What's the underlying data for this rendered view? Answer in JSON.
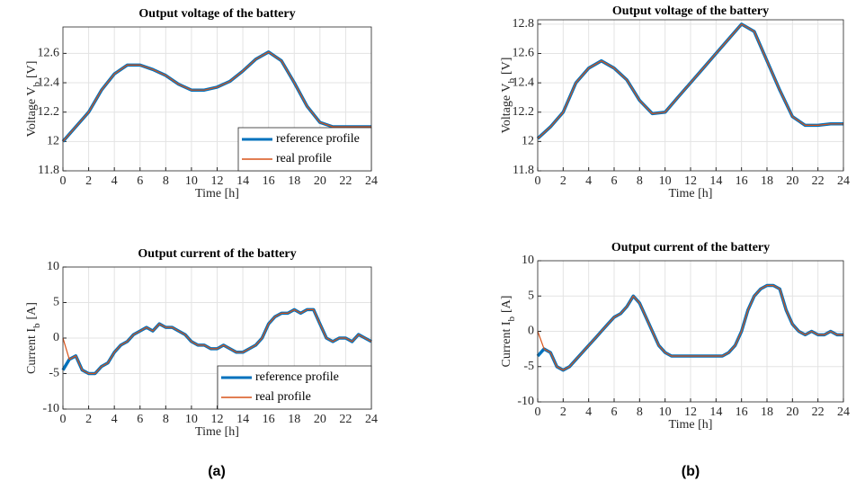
{
  "chart_data": [
    {
      "type": "line",
      "title": "Output voltage of the battery",
      "xlabel": "Time [h]",
      "ylabel": [
        "Voltage V",
        "b",
        "[V]"
      ],
      "x": [
        0,
        1,
        2,
        3,
        4,
        5,
        6,
        7,
        8,
        9,
        10,
        11,
        12,
        13,
        14,
        15,
        16,
        17,
        18,
        19,
        20,
        21,
        22,
        23,
        24
      ],
      "series": [
        {
          "name": "reference profile",
          "color": "#0072bd",
          "values": [
            12.0,
            12.1,
            12.2,
            12.35,
            12.46,
            12.52,
            12.52,
            12.49,
            12.45,
            12.39,
            12.35,
            12.35,
            12.37,
            12.41,
            12.48,
            12.56,
            12.61,
            12.55,
            12.4,
            12.24,
            12.13,
            12.1,
            12.1,
            12.1,
            12.1
          ]
        },
        {
          "name": "real profile",
          "color": "#d95319",
          "values": [
            12.0,
            12.1,
            12.2,
            12.35,
            12.46,
            12.52,
            12.52,
            12.49,
            12.45,
            12.39,
            12.35,
            12.35,
            12.37,
            12.41,
            12.48,
            12.56,
            12.61,
            12.55,
            12.4,
            12.24,
            12.13,
            12.1,
            12.1,
            12.1,
            12.1
          ]
        }
      ],
      "xlim": [
        0,
        24
      ],
      "xticks": [
        0,
        2,
        4,
        6,
        8,
        10,
        12,
        14,
        16,
        18,
        20,
        22,
        24
      ],
      "ylim": [
        11.8,
        12.78
      ],
      "yticks": [
        11.8,
        12,
        12.2,
        12.4,
        12.6
      ],
      "grid": true,
      "legend": "lower right"
    },
    {
      "type": "line",
      "title": "Output voltage of the battery",
      "xlabel": "Time [h]",
      "ylabel": [
        "Voltage V",
        "b",
        "[V]"
      ],
      "x": [
        0,
        1,
        2,
        3,
        4,
        5,
        6,
        7,
        8,
        9,
        10,
        11,
        12,
        13,
        14,
        15,
        16,
        17,
        18,
        19,
        20,
        21,
        22,
        23,
        24
      ],
      "series": [
        {
          "color": "#0072bd",
          "values": [
            12.02,
            12.1,
            12.2,
            12.4,
            12.5,
            12.55,
            12.5,
            12.42,
            12.28,
            12.19,
            12.2,
            12.3,
            12.4,
            12.5,
            12.6,
            12.7,
            12.8,
            12.75,
            12.55,
            12.35,
            12.17,
            12.11,
            12.11,
            12.12,
            12.12
          ]
        },
        {
          "color": "#d95319",
          "values": [
            12.02,
            12.1,
            12.2,
            12.4,
            12.5,
            12.55,
            12.5,
            12.42,
            12.28,
            12.19,
            12.2,
            12.3,
            12.4,
            12.5,
            12.6,
            12.7,
            12.8,
            12.75,
            12.55,
            12.35,
            12.17,
            12.11,
            12.11,
            12.12,
            12.12
          ]
        }
      ],
      "xlim": [
        0,
        24
      ],
      "xticks": [
        0,
        2,
        4,
        6,
        8,
        10,
        12,
        14,
        16,
        18,
        20,
        22,
        24
      ],
      "ylim": [
        11.8,
        12.83
      ],
      "yticks": [
        11.8,
        12,
        12.2,
        12.4,
        12.6,
        12.8
      ],
      "grid": true
    },
    {
      "type": "line",
      "title": "Output current of the battery",
      "xlabel": "Time [h]",
      "ylabel": [
        "Current I",
        "b",
        "[A]"
      ],
      "x": [
        0,
        0.5,
        1,
        1.5,
        2,
        2.5,
        3,
        3.5,
        4,
        4.5,
        5,
        5.5,
        6,
        6.5,
        7,
        7.5,
        8,
        8.5,
        9,
        9.5,
        10,
        10.5,
        11,
        11.5,
        12,
        12.5,
        13,
        13.5,
        14,
        14.5,
        15,
        15.5,
        16,
        16.5,
        17,
        17.5,
        18,
        18.5,
        19,
        19.5,
        20,
        20.5,
        21,
        21.5,
        22,
        22.5,
        23,
        23.5,
        24
      ],
      "series": [
        {
          "name": "reference profile",
          "color": "#0072bd",
          "values": [
            -4.5,
            -3,
            -2.5,
            -4.5,
            -5,
            -5,
            -4,
            -3.5,
            -2,
            -1,
            -0.5,
            0.5,
            1,
            1.5,
            1,
            2,
            1.5,
            1.5,
            1,
            0.5,
            -0.5,
            -1,
            -1,
            -1.5,
            -1.5,
            -1,
            -1.5,
            -2,
            -2,
            -1.5,
            -1,
            0,
            2,
            3,
            3.5,
            3.5,
            4,
            3.5,
            4,
            4,
            2,
            0,
            -0.5,
            0,
            0,
            -0.5,
            0.5,
            0,
            -0.5
          ]
        },
        {
          "name": "real profile",
          "color": "#d95319",
          "values": [
            0,
            -3,
            -2.5,
            -4.5,
            -5,
            -5,
            -4,
            -3.5,
            -2,
            -1,
            -0.5,
            0.5,
            1,
            1.5,
            1,
            2,
            1.5,
            1.5,
            1,
            0.5,
            -0.5,
            -1,
            -1,
            -1.5,
            -1.5,
            -1,
            -1.5,
            -2,
            -2,
            -1.5,
            -1,
            0,
            2,
            3,
            3.5,
            3.5,
            4,
            3.5,
            4,
            4,
            2,
            0,
            -0.5,
            0,
            0,
            -0.5,
            0.5,
            0,
            -0.5
          ]
        }
      ],
      "xlim": [
        0,
        24
      ],
      "xticks": [
        0,
        2,
        4,
        6,
        8,
        10,
        12,
        14,
        16,
        18,
        20,
        22,
        24
      ],
      "ylim": [
        -10,
        10
      ],
      "yticks": [
        -10,
        -5,
        0,
        5,
        10
      ],
      "grid": true,
      "legend": "lower right"
    },
    {
      "type": "line",
      "title": "Output current of the battery",
      "xlabel": "Time [h]",
      "ylabel": [
        "Current I",
        "b",
        "[A]"
      ],
      "x": [
        0,
        0.5,
        1,
        1.5,
        2,
        2.5,
        3,
        3.5,
        4,
        4.5,
        5,
        5.5,
        6,
        6.5,
        7,
        7.5,
        8,
        8.5,
        9,
        9.5,
        10,
        10.5,
        11,
        11.5,
        12,
        12.5,
        13,
        13.5,
        14,
        14.5,
        15,
        15.5,
        16,
        16.5,
        17,
        17.5,
        18,
        18.5,
        19,
        19.5,
        20,
        20.5,
        21,
        21.5,
        22,
        22.5,
        23,
        23.5,
        24
      ],
      "series": [
        {
          "color": "#0072bd",
          "values": [
            -3.5,
            -2.5,
            -3,
            -5,
            -5.5,
            -5,
            -4,
            -3,
            -2,
            -1,
            0,
            1,
            2,
            2.5,
            3.5,
            5,
            4,
            2,
            0,
            -2,
            -3,
            -3.5,
            -3.5,
            -3.5,
            -3.5,
            -3.5,
            -3.5,
            -3.5,
            -3.5,
            -3.5,
            -3,
            -2,
            0,
            3,
            5,
            6,
            6.5,
            6.5,
            6,
            3,
            1,
            0,
            -0.5,
            0,
            -0.5,
            -0.5,
            0,
            -0.5,
            -0.5
          ]
        },
        {
          "color": "#d95319",
          "values": [
            0,
            -2.5,
            -3,
            -5,
            -5.5,
            -5,
            -4,
            -3,
            -2,
            -1,
            0,
            1,
            2,
            2.5,
            3.5,
            5,
            4,
            2,
            0,
            -2,
            -3,
            -3.5,
            -3.5,
            -3.5,
            -3.5,
            -3.5,
            -3.5,
            -3.5,
            -3.5,
            -3.5,
            -3,
            -2,
            0,
            3,
            5,
            6,
            6.5,
            6.5,
            6,
            3,
            1,
            0,
            -0.5,
            0,
            -0.5,
            -0.5,
            0,
            -0.5,
            -0.5
          ]
        }
      ],
      "xlim": [
        0,
        24
      ],
      "xticks": [
        0,
        2,
        4,
        6,
        8,
        10,
        12,
        14,
        16,
        18,
        20,
        22,
        24
      ],
      "ylim": [
        -10,
        10
      ],
      "yticks": [
        -10,
        -5,
        0,
        5,
        10
      ],
      "grid": true
    }
  ],
  "captions": [
    "(a)",
    "(b)"
  ]
}
